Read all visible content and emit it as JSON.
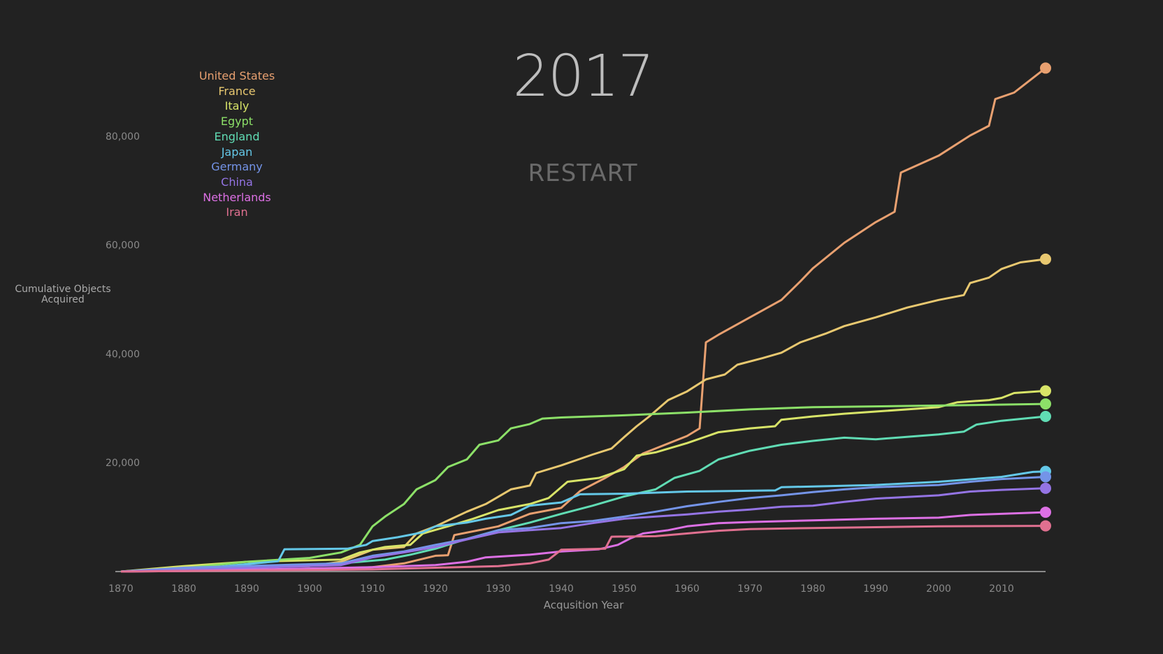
{
  "header": {
    "year": "2017",
    "restart_label": "RESTART"
  },
  "chart_data": {
    "type": "line",
    "xlabel": "Acqusition Year",
    "ylabel": "Cumulative Objects Acquired",
    "xlim": [
      1870,
      2017
    ],
    "ylim": [
      0,
      92500
    ],
    "x_ticks": [
      1870,
      1880,
      1890,
      1900,
      1910,
      1920,
      1930,
      1940,
      1950,
      1960,
      1970,
      1980,
      1990,
      2000,
      2010
    ],
    "y_ticks": [
      20000,
      40000,
      60000,
      80000
    ],
    "y_tick_labels": [
      "20,000",
      "40,000",
      "60,000",
      "80,000"
    ],
    "legend_position": "top-left",
    "grid": false,
    "series": [
      {
        "name": "United States",
        "color": "#e8a070",
        "points": [
          [
            1870,
            0
          ],
          [
            1880,
            200
          ],
          [
            1900,
            400
          ],
          [
            1910,
            800
          ],
          [
            1915,
            1500
          ],
          [
            1920,
            2900
          ],
          [
            1922,
            3000
          ],
          [
            1923,
            6700
          ],
          [
            1930,
            8300
          ],
          [
            1935,
            10600
          ],
          [
            1940,
            11700
          ],
          [
            1943,
            14800
          ],
          [
            1947,
            17200
          ],
          [
            1950,
            19200
          ],
          [
            1953,
            21700
          ],
          [
            1955,
            22600
          ],
          [
            1960,
            24900
          ],
          [
            1962,
            26300
          ],
          [
            1963,
            42100
          ],
          [
            1965,
            43500
          ],
          [
            1970,
            46700
          ],
          [
            1975,
            49900
          ],
          [
            1978,
            53300
          ],
          [
            1980,
            55700
          ],
          [
            1985,
            60400
          ],
          [
            1990,
            64200
          ],
          [
            1993,
            66100
          ],
          [
            1994,
            73300
          ],
          [
            2000,
            76400
          ],
          [
            2005,
            80100
          ],
          [
            2008,
            81900
          ],
          [
            2009,
            86800
          ],
          [
            2012,
            88000
          ],
          [
            2017,
            92500
          ]
        ]
      },
      {
        "name": "France",
        "color": "#e8c870",
        "points": [
          [
            1870,
            0
          ],
          [
            1880,
            800
          ],
          [
            1900,
            1000
          ],
          [
            1905,
            1800
          ],
          [
            1910,
            4000
          ],
          [
            1915,
            4500
          ],
          [
            1917,
            7000
          ],
          [
            1920,
            8300
          ],
          [
            1925,
            11000
          ],
          [
            1928,
            12400
          ],
          [
            1932,
            15100
          ],
          [
            1935,
            15800
          ],
          [
            1936,
            18100
          ],
          [
            1940,
            19500
          ],
          [
            1945,
            21500
          ],
          [
            1948,
            22600
          ],
          [
            1950,
            24700
          ],
          [
            1952,
            26700
          ],
          [
            1954,
            28500
          ],
          [
            1957,
            31500
          ],
          [
            1960,
            33100
          ],
          [
            1963,
            35300
          ],
          [
            1966,
            36200
          ],
          [
            1968,
            38000
          ],
          [
            1972,
            39200
          ],
          [
            1975,
            40200
          ],
          [
            1978,
            42100
          ],
          [
            1982,
            43700
          ],
          [
            1985,
            45100
          ],
          [
            1990,
            46700
          ],
          [
            1995,
            48500
          ],
          [
            2000,
            49900
          ],
          [
            2004,
            50800
          ],
          [
            2005,
            53000
          ],
          [
            2008,
            54000
          ],
          [
            2010,
            55600
          ],
          [
            2013,
            56800
          ],
          [
            2017,
            57400
          ]
        ]
      },
      {
        "name": "Italy",
        "color": "#d8e468",
        "points": [
          [
            1870,
            0
          ],
          [
            1880,
            1000
          ],
          [
            1890,
            1800
          ],
          [
            1905,
            2200
          ],
          [
            1908,
            3500
          ],
          [
            1912,
            4500
          ],
          [
            1916,
            4900
          ],
          [
            1918,
            7000
          ],
          [
            1922,
            8300
          ],
          [
            1926,
            9700
          ],
          [
            1930,
            11300
          ],
          [
            1935,
            12400
          ],
          [
            1938,
            13500
          ],
          [
            1941,
            16500
          ],
          [
            1946,
            17200
          ],
          [
            1950,
            18800
          ],
          [
            1952,
            21300
          ],
          [
            1955,
            21900
          ],
          [
            1960,
            23600
          ],
          [
            1965,
            25600
          ],
          [
            1970,
            26300
          ],
          [
            1974,
            26700
          ],
          [
            1975,
            27900
          ],
          [
            1980,
            28500
          ],
          [
            1985,
            29000
          ],
          [
            1990,
            29400
          ],
          [
            2000,
            30200
          ],
          [
            2003,
            31100
          ],
          [
            2008,
            31500
          ],
          [
            2010,
            31900
          ],
          [
            2012,
            32800
          ],
          [
            2017,
            33200
          ]
        ]
      },
      {
        "name": "Egypt",
        "color": "#8ce068",
        "points": [
          [
            1870,
            0
          ],
          [
            1880,
            600
          ],
          [
            1890,
            1800
          ],
          [
            1900,
            2500
          ],
          [
            1905,
            3500
          ],
          [
            1908,
            4900
          ],
          [
            1910,
            8300
          ],
          [
            1912,
            10100
          ],
          [
            1915,
            12400
          ],
          [
            1917,
            15100
          ],
          [
            1920,
            16800
          ],
          [
            1922,
            19200
          ],
          [
            1925,
            20600
          ],
          [
            1927,
            23300
          ],
          [
            1930,
            24100
          ],
          [
            1932,
            26300
          ],
          [
            1935,
            27100
          ],
          [
            1937,
            28100
          ],
          [
            1940,
            28300
          ],
          [
            1950,
            28700
          ],
          [
            1960,
            29200
          ],
          [
            1970,
            29800
          ],
          [
            1980,
            30200
          ],
          [
            2000,
            30500
          ],
          [
            2017,
            30800
          ]
        ]
      },
      {
        "name": "England",
        "color": "#60dcb4",
        "points": [
          [
            1870,
            0
          ],
          [
            1880,
            500
          ],
          [
            1905,
            1500
          ],
          [
            1912,
            2200
          ],
          [
            1916,
            3100
          ],
          [
            1920,
            4200
          ],
          [
            1925,
            6000
          ],
          [
            1930,
            7600
          ],
          [
            1935,
            9000
          ],
          [
            1940,
            10600
          ],
          [
            1945,
            12100
          ],
          [
            1950,
            13800
          ],
          [
            1955,
            15100
          ],
          [
            1958,
            17200
          ],
          [
            1962,
            18500
          ],
          [
            1965,
            20600
          ],
          [
            1970,
            22200
          ],
          [
            1975,
            23300
          ],
          [
            1980,
            24000
          ],
          [
            1985,
            24600
          ],
          [
            1990,
            24300
          ],
          [
            2000,
            25200
          ],
          [
            2004,
            25700
          ],
          [
            2006,
            27000
          ],
          [
            2010,
            27700
          ],
          [
            2017,
            28500
          ]
        ]
      },
      {
        "name": "Japan",
        "color": "#64c8e8",
        "points": [
          [
            1870,
            0
          ],
          [
            1880,
            300
          ],
          [
            1895,
            1900
          ],
          [
            1896,
            4100
          ],
          [
            1906,
            4200
          ],
          [
            1909,
            4900
          ],
          [
            1910,
            5600
          ],
          [
            1914,
            6300
          ],
          [
            1918,
            7200
          ],
          [
            1920,
            8300
          ],
          [
            1925,
            9000
          ],
          [
            1928,
            9700
          ],
          [
            1932,
            10400
          ],
          [
            1935,
            12100
          ],
          [
            1940,
            12700
          ],
          [
            1943,
            14200
          ],
          [
            1950,
            14300
          ],
          [
            1960,
            14700
          ],
          [
            1974,
            14900
          ],
          [
            1975,
            15500
          ],
          [
            1990,
            15900
          ],
          [
            2000,
            16500
          ],
          [
            2010,
            17400
          ],
          [
            2015,
            18300
          ],
          [
            2017,
            18400
          ]
        ]
      },
      {
        "name": "Germany",
        "color": "#7494e8",
        "points": [
          [
            1870,
            0
          ],
          [
            1880,
            700
          ],
          [
            1905,
            1500
          ],
          [
            1910,
            2900
          ],
          [
            1915,
            3700
          ],
          [
            1920,
            4900
          ],
          [
            1925,
            6000
          ],
          [
            1930,
            7600
          ],
          [
            1935,
            8000
          ],
          [
            1940,
            8900
          ],
          [
            1945,
            9300
          ],
          [
            1950,
            10100
          ],
          [
            1955,
            11000
          ],
          [
            1960,
            12000
          ],
          [
            1965,
            12800
          ],
          [
            1970,
            13500
          ],
          [
            1975,
            14000
          ],
          [
            1980,
            14600
          ],
          [
            1985,
            15100
          ],
          [
            1990,
            15500
          ],
          [
            2000,
            15900
          ],
          [
            2005,
            16500
          ],
          [
            2010,
            17000
          ],
          [
            2017,
            17400
          ]
        ]
      },
      {
        "name": "China",
        "color": "#9474e4",
        "points": [
          [
            1870,
            0
          ],
          [
            1880,
            300
          ],
          [
            1905,
            1200
          ],
          [
            1910,
            2600
          ],
          [
            1915,
            3500
          ],
          [
            1920,
            4500
          ],
          [
            1925,
            5900
          ],
          [
            1930,
            7200
          ],
          [
            1935,
            7600
          ],
          [
            1940,
            8000
          ],
          [
            1945,
            8900
          ],
          [
            1950,
            9700
          ],
          [
            1955,
            10100
          ],
          [
            1960,
            10500
          ],
          [
            1965,
            11000
          ],
          [
            1970,
            11400
          ],
          [
            1975,
            11900
          ],
          [
            1980,
            12100
          ],
          [
            1985,
            12800
          ],
          [
            1990,
            13400
          ],
          [
            2000,
            14000
          ],
          [
            2005,
            14700
          ],
          [
            2010,
            15000
          ],
          [
            2017,
            15300
          ]
        ]
      },
      {
        "name": "Netherlands",
        "color": "#dc70e4",
        "points": [
          [
            1870,
            0
          ],
          [
            1880,
            100
          ],
          [
            1910,
            800
          ],
          [
            1920,
            1200
          ],
          [
            1925,
            1800
          ],
          [
            1928,
            2600
          ],
          [
            1935,
            3100
          ],
          [
            1940,
            3700
          ],
          [
            1946,
            4100
          ],
          [
            1949,
            4900
          ],
          [
            1951,
            6100
          ],
          [
            1953,
            7000
          ],
          [
            1957,
            7600
          ],
          [
            1960,
            8300
          ],
          [
            1965,
            8900
          ],
          [
            1970,
            9100
          ],
          [
            1980,
            9400
          ],
          [
            1990,
            9700
          ],
          [
            2000,
            9900
          ],
          [
            2005,
            10400
          ],
          [
            2010,
            10600
          ],
          [
            2017,
            10900
          ]
        ]
      },
      {
        "name": "Iran",
        "color": "#e07090",
        "points": [
          [
            1870,
            0
          ],
          [
            1880,
            100
          ],
          [
            1910,
            400
          ],
          [
            1920,
            700
          ],
          [
            1930,
            1000
          ],
          [
            1935,
            1500
          ],
          [
            1938,
            2200
          ],
          [
            1940,
            4000
          ],
          [
            1947,
            4200
          ],
          [
            1948,
            6400
          ],
          [
            1955,
            6500
          ],
          [
            1960,
            7000
          ],
          [
            1965,
            7500
          ],
          [
            1970,
            7800
          ],
          [
            1980,
            8000
          ],
          [
            2000,
            8300
          ],
          [
            2017,
            8400
          ]
        ]
      }
    ]
  }
}
